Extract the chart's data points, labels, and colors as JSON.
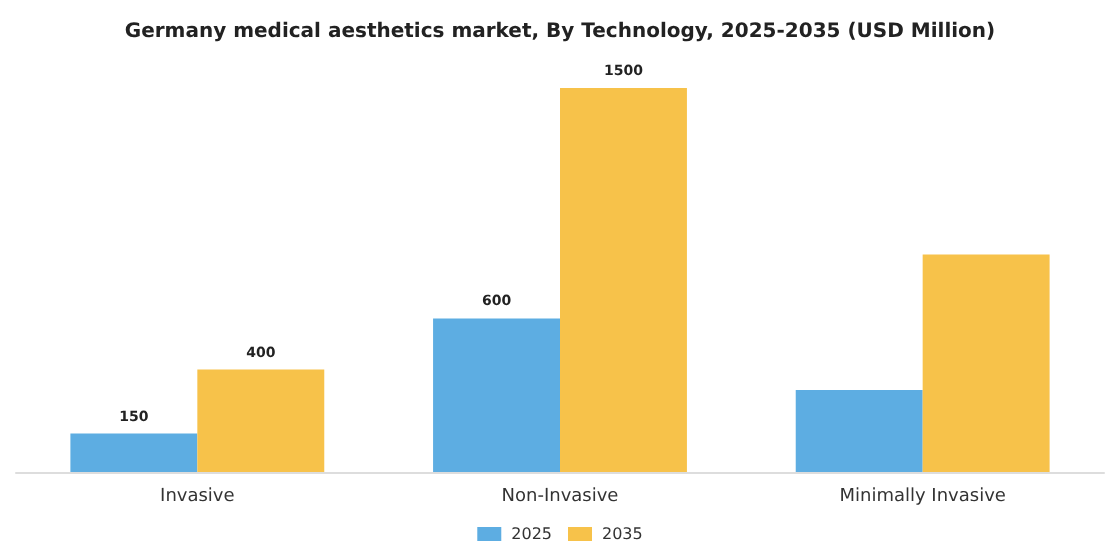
{
  "chart_data": {
    "type": "bar",
    "title": "Germany medical aesthetics market, By Technology, 2025-2035 (USD Million)",
    "categories": [
      "Invasive",
      "Non-Invasive",
      "Minimally Invasive"
    ],
    "series": [
      {
        "name": "2025",
        "color": "#5dade2",
        "values": [
          150,
          600,
          320
        ],
        "value_labels": [
          "150",
          "600",
          null
        ]
      },
      {
        "name": "2035",
        "color": "#f7c24a",
        "values": [
          400,
          1500,
          850
        ],
        "value_labels": [
          "400",
          "1500",
          null
        ]
      }
    ],
    "legend": "bottom"
  }
}
